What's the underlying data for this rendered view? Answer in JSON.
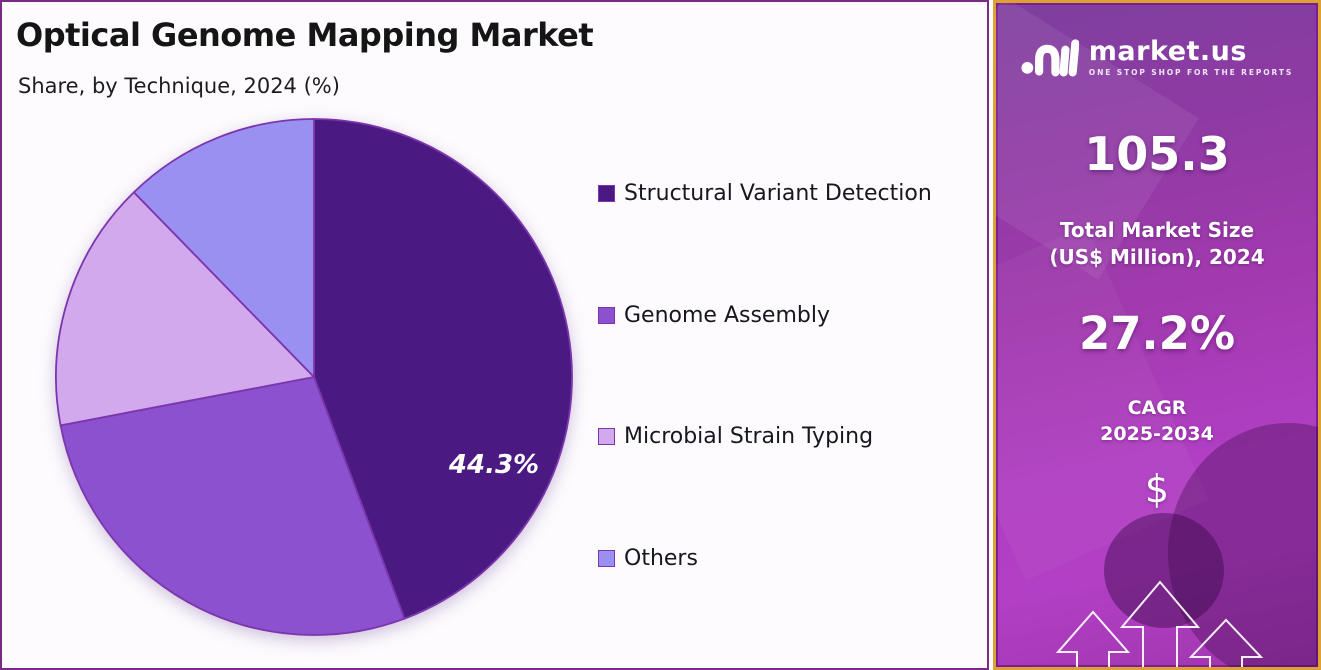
{
  "header": {
    "title": "Optical Genome Mapping Market",
    "subtitle": "Share, by Technique, 2024 (%)"
  },
  "chart_data": {
    "type": "pie",
    "title": "Optical Genome Mapping Market",
    "subtitle": "Share, by Technique, 2024 (%)",
    "unit": "%",
    "labels": [
      "Structural Variant Detection",
      "Genome Assembly",
      "Microbial Strain Typing",
      "Others"
    ],
    "values": [
      44.3,
      27.7,
      15.7,
      12.3
    ],
    "colors": [
      "#4a1a82",
      "#8c51ce",
      "#d2a9ec",
      "#9990f2"
    ],
    "slice_stroke": "#7c35ad",
    "start_angle_deg": 0,
    "direction": "clockwise",
    "legend_position": "right",
    "data_label": {
      "slice": "Structural Variant Detection",
      "text": "44.3%"
    }
  },
  "sidebar": {
    "logo": {
      "name": "market.us",
      "tagline": "ONE STOP SHOP FOR THE REPORTS"
    },
    "market_size_value": "105.3",
    "market_size_label_line1": "Total Market Size",
    "market_size_label_line2": "(US$ Million), 2024",
    "cagr_value": "27.2%",
    "cagr_label_line1": "CAGR",
    "cagr_label_line2": "2025-2034",
    "dollar_symbol": "$"
  },
  "colors": {
    "panel_bg": "#fdfbfe",
    "panel_border": "#7b2b86",
    "title_text": "#151515",
    "legend_text": "#17171f",
    "slice_label_text": "#ffffff",
    "sidebar_border_gold": "#dda233",
    "sidebar_inner_border": "#7a1f92",
    "sidebar_gradient_top": "#7e3f9e",
    "sidebar_gradient_bottom": "#b23fc5",
    "sidebar_text": "#ffffff"
  }
}
